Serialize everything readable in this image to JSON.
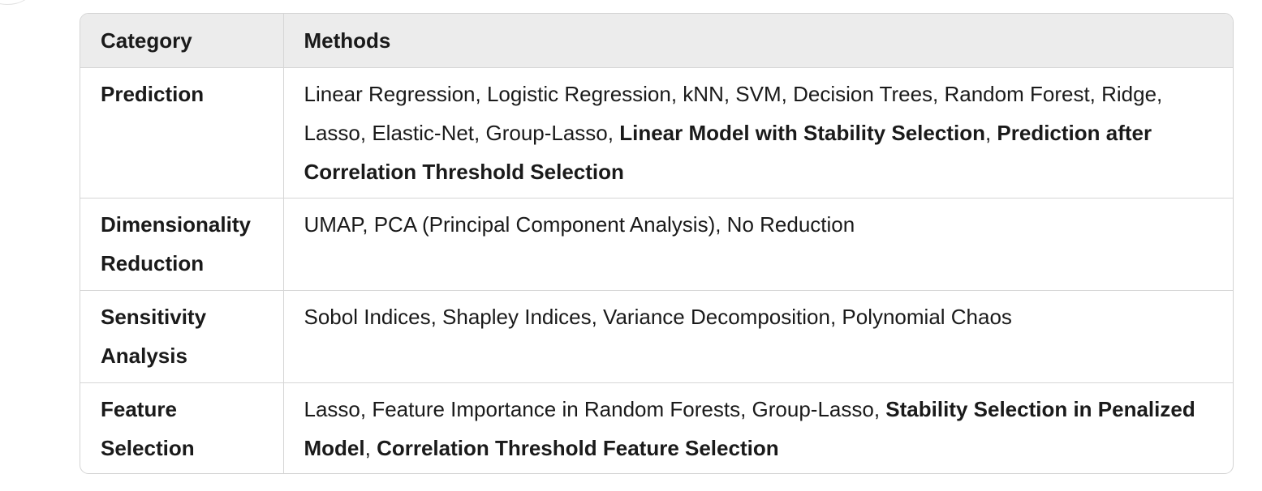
{
  "table": {
    "headers": [
      "Category",
      "Methods"
    ],
    "rows": [
      {
        "category": "Prediction",
        "methods": [
          {
            "text": "Linear Regression, Logistic Regression, kNN, SVM, Decision Trees, Random Forest, Ridge, Lasso, Elastic-Net, Group-Lasso, ",
            "bold": false
          },
          {
            "text": "Linear Model with Stability Selection",
            "bold": true
          },
          {
            "text": ", ",
            "bold": false
          },
          {
            "text": "Prediction after Correlation Threshold Selection",
            "bold": true
          }
        ]
      },
      {
        "category": "Dimensionality Reduction",
        "methods": [
          {
            "text": "UMAP, PCA (Principal Component Analysis), No Reduction",
            "bold": false
          }
        ]
      },
      {
        "category": "Sensitivity Analysis",
        "methods": [
          {
            "text": "Sobol Indices, Shapley Indices, Variance Decomposition, Polynomial Chaos",
            "bold": false
          }
        ]
      },
      {
        "category": "Feature Selection",
        "methods": [
          {
            "text": "Lasso, Feature Importance in Random Forests, Group-Lasso, ",
            "bold": false
          },
          {
            "text": "Stability Selection in Penalized Model",
            "bold": true
          },
          {
            "text": ", ",
            "bold": false
          },
          {
            "text": "Correlation Threshold Feature Selection",
            "bold": true
          }
        ]
      }
    ]
  }
}
